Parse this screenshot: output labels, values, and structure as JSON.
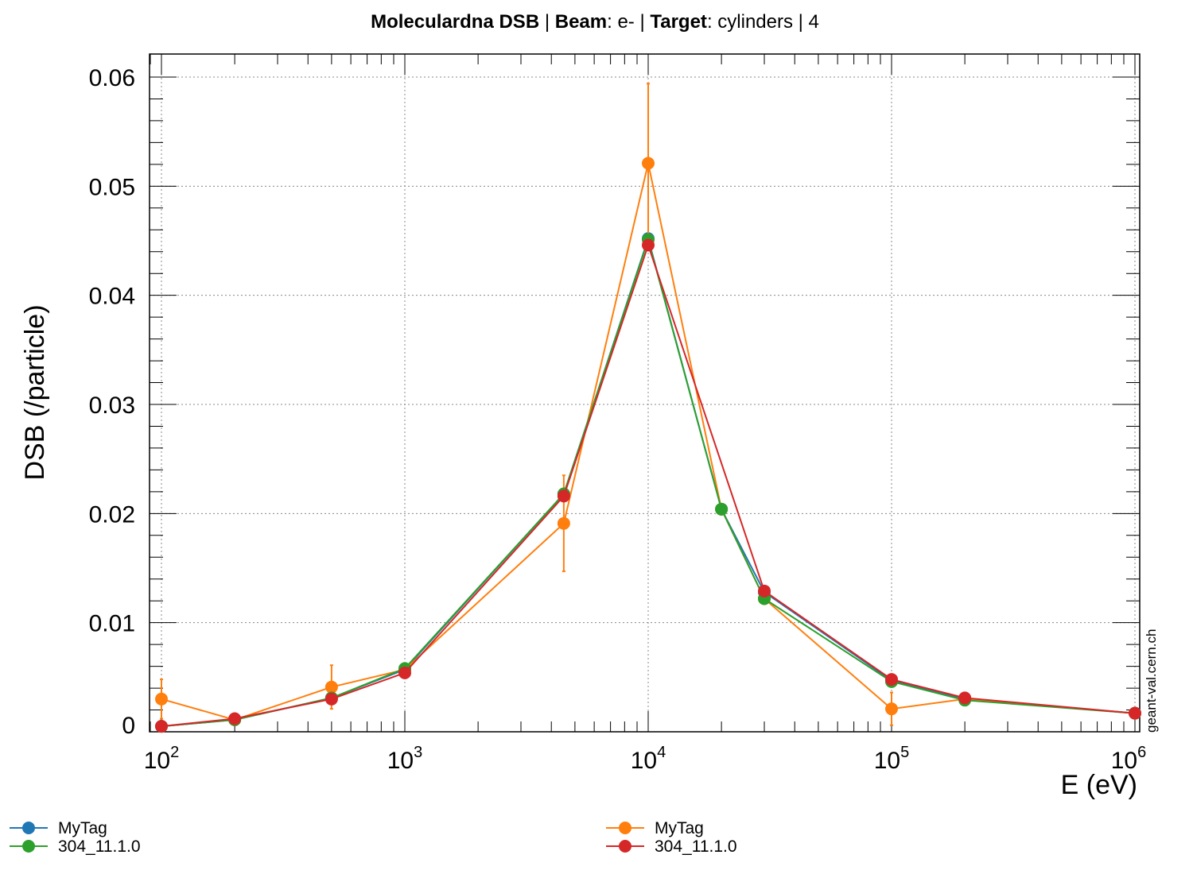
{
  "chart_data": {
    "type": "line",
    "title_parts": [
      {
        "text": "Moleculardna DSB ",
        "bold": true
      },
      {
        "text": " | ",
        "bold": false
      },
      {
        "text": "Beam",
        "bold": true
      },
      {
        "text": ": e- | ",
        "bold": false
      },
      {
        "text": "Target",
        "bold": true
      },
      {
        "text": ": cylinders | 4",
        "bold": false
      }
    ],
    "xlabel": "E (eV)",
    "ylabel": "DSB (/particle)",
    "xscale": "log",
    "xlim": [
      100,
      1000000
    ],
    "ylim": [
      0,
      0.062
    ],
    "x_tick_labels": [
      {
        "base": "10",
        "exp": "2"
      },
      {
        "base": "10",
        "exp": "3"
      },
      {
        "base": "10",
        "exp": "4"
      },
      {
        "base": "10",
        "exp": "5"
      },
      {
        "base": "10",
        "exp": "6"
      }
    ],
    "y_tick_labels": [
      "0",
      "0.01",
      "0.02",
      "0.03",
      "0.04",
      "0.05",
      "0.06"
    ],
    "grid": true,
    "legend_position": "bottom",
    "watermark": "geant-val.cern.ch",
    "series": [
      {
        "name": "MyTag",
        "color": "#1f77b4",
        "x": [
          100,
          200,
          500,
          1000,
          4500,
          10000,
          20000,
          30000,
          100000,
          200000,
          1000000
        ],
        "y": [
          0.0005,
          0.0011,
          0.0031,
          0.0057,
          0.0218,
          0.0452,
          0.0204,
          0.0128,
          0.0047,
          0.003,
          0.0017
        ],
        "err": [
          0,
          0,
          0,
          0,
          0,
          0,
          0,
          0,
          0,
          0,
          0
        ]
      },
      {
        "name": "MyTag",
        "color": "#ff7f0e",
        "x": [
          100,
          200,
          500,
          1000,
          4500,
          10000,
          20000,
          30000,
          100000,
          200000,
          1000000
        ],
        "y": [
          0.003,
          0.0011,
          0.0041,
          0.0057,
          0.0191,
          0.0521,
          0.0204,
          0.0122,
          0.0021,
          0.003,
          0.0017
        ],
        "err": [
          0.0018,
          0,
          0.002,
          0,
          0.0044,
          0.0073,
          0,
          0,
          0.0015,
          0,
          0
        ]
      },
      {
        "name": "304_11.1.0",
        "color": "#2ca02c",
        "x": [
          100,
          200,
          500,
          1000,
          4500,
          10000,
          20000,
          30000,
          100000,
          200000,
          1000000
        ],
        "y": [
          0.0005,
          0.0011,
          0.0031,
          0.0058,
          0.0218,
          0.0451,
          0.0204,
          0.0122,
          0.0046,
          0.0029,
          0.0017
        ],
        "err": [
          0,
          0,
          0,
          0,
          0,
          0,
          0,
          0,
          0,
          0,
          0
        ]
      },
      {
        "name": "304_11.1.0",
        "color": "#d62728",
        "x": [
          100,
          200,
          500,
          1000,
          4500,
          10000,
          30000,
          100000,
          200000,
          1000000
        ],
        "y": [
          0.0005,
          0.0012,
          0.003,
          0.0054,
          0.0216,
          0.0446,
          0.0129,
          0.0048,
          0.0031,
          0.0017
        ],
        "err": [
          0,
          0,
          0,
          0,
          0,
          0,
          0,
          0,
          0,
          0
        ]
      }
    ],
    "legend_columns": [
      [
        0,
        2
      ],
      [
        1,
        3
      ]
    ]
  }
}
